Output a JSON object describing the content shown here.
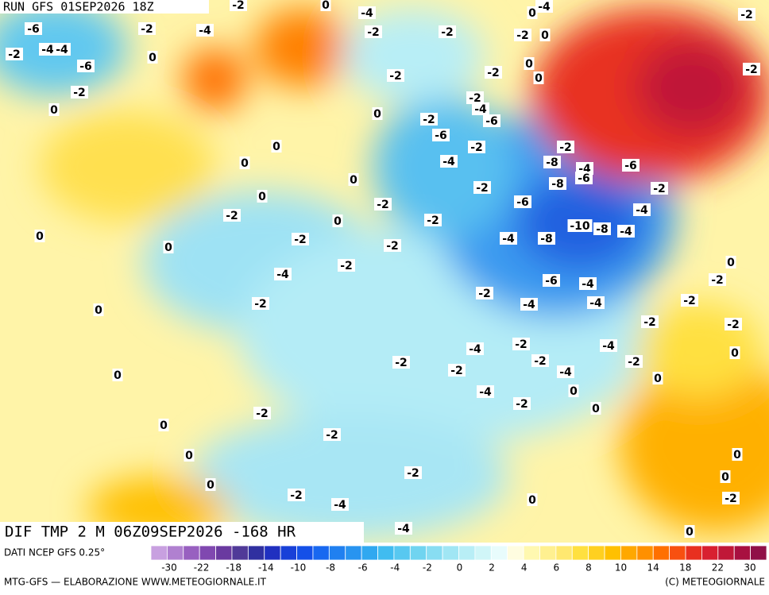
{
  "header": {
    "title": "RUN GFS 01SEP2026 18Z"
  },
  "footer": {
    "field": "DIF TMP 2 M 06Z09SEP2026 -168 HR",
    "source": "DATI NCEP GFS 0.25°",
    "credit_left": "MTG-GFS — ELABORAZIONE WWW.METEOGIORNALE.IT",
    "credit_right": "(C) METEOGIORNALE"
  },
  "colorbar": {
    "labels": [
      -30,
      -22,
      -18,
      -14,
      -10,
      -8,
      -6,
      -4,
      -2,
      0,
      2,
      4,
      6,
      8,
      10,
      14,
      18,
      22,
      30
    ],
    "colors": [
      "#c8a0e0",
      "#b080d0",
      "#9860c0",
      "#8048b0",
      "#6a3aa0",
      "#503a98",
      "#3030a0",
      "#2030c0",
      "#1840d8",
      "#1450e8",
      "#1868f0",
      "#2080f0",
      "#2894f0",
      "#30a8f0",
      "#40bcf0",
      "#58c8f0",
      "#70d4f0",
      "#88ddf2",
      "#a0e6f4",
      "#b8eef6",
      "#d0f6f8",
      "#e8fcfc",
      "#fffde0",
      "#fff8b0",
      "#fff090",
      "#ffe870",
      "#ffe040",
      "#ffd020",
      "#ffc000",
      "#ffa800",
      "#ff9000",
      "#ff7000",
      "#f85010",
      "#e83020",
      "#d82030",
      "#c01838",
      "#a81040",
      "#901048"
    ]
  },
  "map": {
    "labels": [
      -2,
      -6,
      -4,
      -4,
      -6,
      -2,
      0,
      0,
      -2,
      -4,
      -2,
      0,
      -4,
      -2,
      -2,
      -2,
      0,
      0,
      0,
      0,
      -2,
      0,
      0,
      0,
      0,
      0,
      0,
      0,
      -2,
      -2,
      -4,
      -2,
      0,
      0,
      -2,
      -2,
      -2,
      -4,
      -2,
      -6,
      -2,
      -2,
      -4,
      -6,
      -2,
      0,
      0,
      -2,
      0,
      0,
      -4,
      -2,
      -6,
      -4,
      -8,
      -8,
      -8,
      -2,
      -4,
      -6,
      -10,
      -8,
      -4,
      -4,
      -6,
      -2,
      -2,
      -6,
      -4,
      -4,
      -4,
      -2,
      -2,
      0,
      -2,
      0,
      -2,
      -4,
      -2,
      -4,
      -2,
      0,
      -2,
      -4,
      0,
      0,
      -2,
      -2,
      -4,
      -2,
      -2,
      -2,
      -2,
      -2,
      -4,
      0,
      -4,
      0,
      0,
      0,
      -2,
      -2,
      -2
    ]
  }
}
